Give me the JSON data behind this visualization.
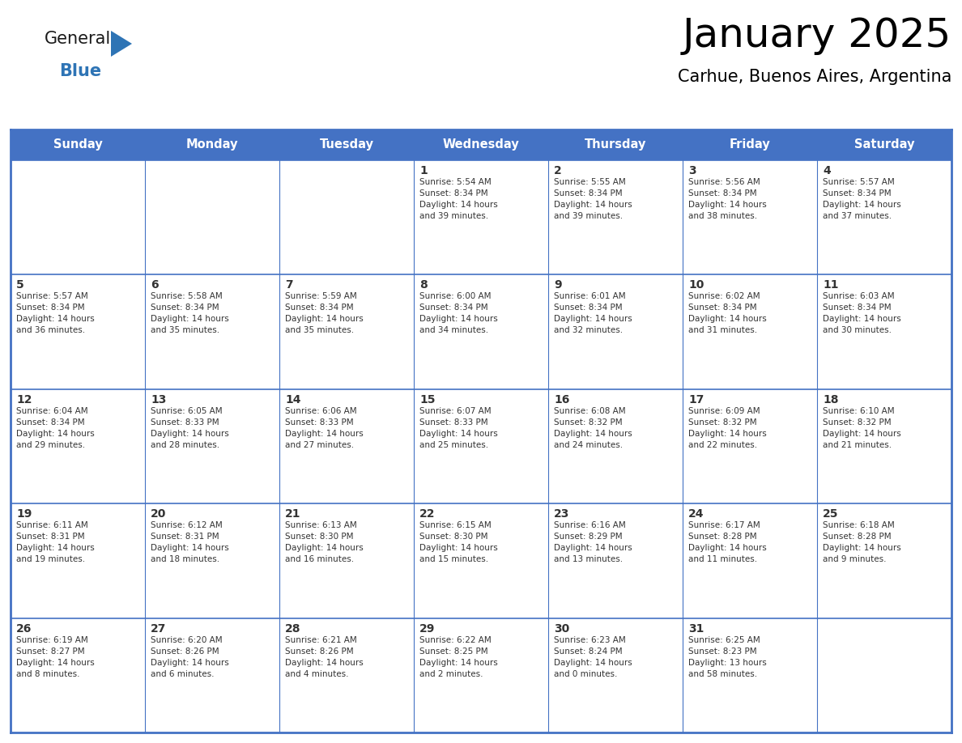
{
  "title": "January 2025",
  "subtitle": "Carhue, Buenos Aires, Argentina",
  "header_bg_color": "#4472C4",
  "header_text_color": "#FFFFFF",
  "cell_bg_color": "#FFFFFF",
  "border_color": "#4472C4",
  "text_color": "#333333",
  "day_headers": [
    "Sunday",
    "Monday",
    "Tuesday",
    "Wednesday",
    "Thursday",
    "Friday",
    "Saturday"
  ],
  "logo_general_color": "#1a1a1a",
  "logo_blue_color": "#2E74B5",
  "logo_triangle_color": "#2E74B5",
  "title_fontsize": 36,
  "subtitle_fontsize": 15,
  "header_fontsize": 10.5,
  "day_num_fontsize": 10,
  "info_fontsize": 7.5,
  "weeks": [
    [
      {
        "day": "",
        "info": ""
      },
      {
        "day": "",
        "info": ""
      },
      {
        "day": "",
        "info": ""
      },
      {
        "day": "1",
        "info": "Sunrise: 5:54 AM\nSunset: 8:34 PM\nDaylight: 14 hours\nand 39 minutes."
      },
      {
        "day": "2",
        "info": "Sunrise: 5:55 AM\nSunset: 8:34 PM\nDaylight: 14 hours\nand 39 minutes."
      },
      {
        "day": "3",
        "info": "Sunrise: 5:56 AM\nSunset: 8:34 PM\nDaylight: 14 hours\nand 38 minutes."
      },
      {
        "day": "4",
        "info": "Sunrise: 5:57 AM\nSunset: 8:34 PM\nDaylight: 14 hours\nand 37 minutes."
      }
    ],
    [
      {
        "day": "5",
        "info": "Sunrise: 5:57 AM\nSunset: 8:34 PM\nDaylight: 14 hours\nand 36 minutes."
      },
      {
        "day": "6",
        "info": "Sunrise: 5:58 AM\nSunset: 8:34 PM\nDaylight: 14 hours\nand 35 minutes."
      },
      {
        "day": "7",
        "info": "Sunrise: 5:59 AM\nSunset: 8:34 PM\nDaylight: 14 hours\nand 35 minutes."
      },
      {
        "day": "8",
        "info": "Sunrise: 6:00 AM\nSunset: 8:34 PM\nDaylight: 14 hours\nand 34 minutes."
      },
      {
        "day": "9",
        "info": "Sunrise: 6:01 AM\nSunset: 8:34 PM\nDaylight: 14 hours\nand 32 minutes."
      },
      {
        "day": "10",
        "info": "Sunrise: 6:02 AM\nSunset: 8:34 PM\nDaylight: 14 hours\nand 31 minutes."
      },
      {
        "day": "11",
        "info": "Sunrise: 6:03 AM\nSunset: 8:34 PM\nDaylight: 14 hours\nand 30 minutes."
      }
    ],
    [
      {
        "day": "12",
        "info": "Sunrise: 6:04 AM\nSunset: 8:34 PM\nDaylight: 14 hours\nand 29 minutes."
      },
      {
        "day": "13",
        "info": "Sunrise: 6:05 AM\nSunset: 8:33 PM\nDaylight: 14 hours\nand 28 minutes."
      },
      {
        "day": "14",
        "info": "Sunrise: 6:06 AM\nSunset: 8:33 PM\nDaylight: 14 hours\nand 27 minutes."
      },
      {
        "day": "15",
        "info": "Sunrise: 6:07 AM\nSunset: 8:33 PM\nDaylight: 14 hours\nand 25 minutes."
      },
      {
        "day": "16",
        "info": "Sunrise: 6:08 AM\nSunset: 8:32 PM\nDaylight: 14 hours\nand 24 minutes."
      },
      {
        "day": "17",
        "info": "Sunrise: 6:09 AM\nSunset: 8:32 PM\nDaylight: 14 hours\nand 22 minutes."
      },
      {
        "day": "18",
        "info": "Sunrise: 6:10 AM\nSunset: 8:32 PM\nDaylight: 14 hours\nand 21 minutes."
      }
    ],
    [
      {
        "day": "19",
        "info": "Sunrise: 6:11 AM\nSunset: 8:31 PM\nDaylight: 14 hours\nand 19 minutes."
      },
      {
        "day": "20",
        "info": "Sunrise: 6:12 AM\nSunset: 8:31 PM\nDaylight: 14 hours\nand 18 minutes."
      },
      {
        "day": "21",
        "info": "Sunrise: 6:13 AM\nSunset: 8:30 PM\nDaylight: 14 hours\nand 16 minutes."
      },
      {
        "day": "22",
        "info": "Sunrise: 6:15 AM\nSunset: 8:30 PM\nDaylight: 14 hours\nand 15 minutes."
      },
      {
        "day": "23",
        "info": "Sunrise: 6:16 AM\nSunset: 8:29 PM\nDaylight: 14 hours\nand 13 minutes."
      },
      {
        "day": "24",
        "info": "Sunrise: 6:17 AM\nSunset: 8:28 PM\nDaylight: 14 hours\nand 11 minutes."
      },
      {
        "day": "25",
        "info": "Sunrise: 6:18 AM\nSunset: 8:28 PM\nDaylight: 14 hours\nand 9 minutes."
      }
    ],
    [
      {
        "day": "26",
        "info": "Sunrise: 6:19 AM\nSunset: 8:27 PM\nDaylight: 14 hours\nand 8 minutes."
      },
      {
        "day": "27",
        "info": "Sunrise: 6:20 AM\nSunset: 8:26 PM\nDaylight: 14 hours\nand 6 minutes."
      },
      {
        "day": "28",
        "info": "Sunrise: 6:21 AM\nSunset: 8:26 PM\nDaylight: 14 hours\nand 4 minutes."
      },
      {
        "day": "29",
        "info": "Sunrise: 6:22 AM\nSunset: 8:25 PM\nDaylight: 14 hours\nand 2 minutes."
      },
      {
        "day": "30",
        "info": "Sunrise: 6:23 AM\nSunset: 8:24 PM\nDaylight: 14 hours\nand 0 minutes."
      },
      {
        "day": "31",
        "info": "Sunrise: 6:25 AM\nSunset: 8:23 PM\nDaylight: 13 hours\nand 58 minutes."
      },
      {
        "day": "",
        "info": ""
      }
    ]
  ]
}
